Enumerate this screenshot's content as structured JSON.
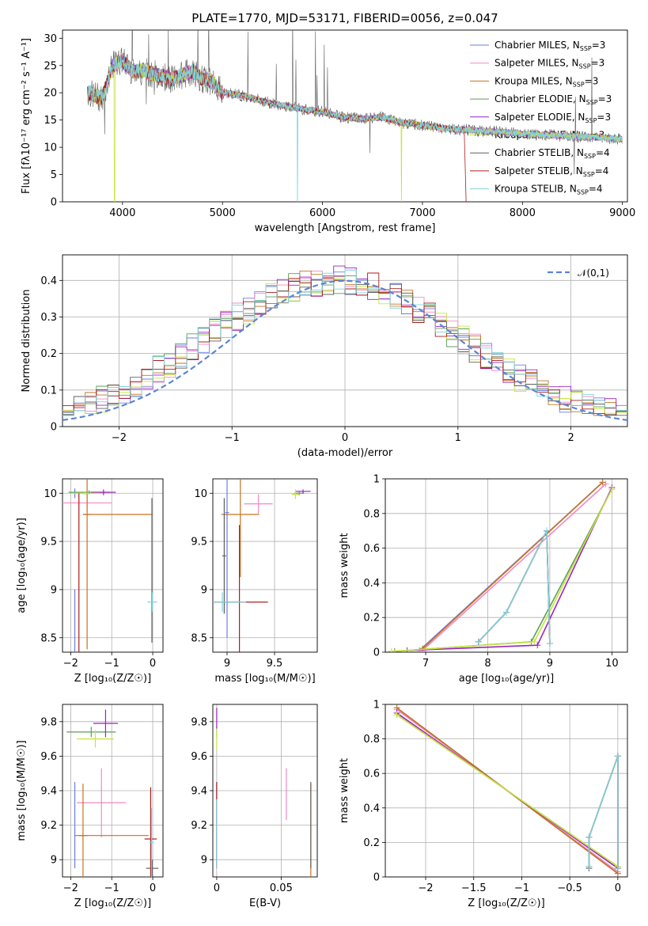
{
  "title": "PLATE=1770, MJD=53171, FIBERID=0056, z=0.047",
  "colors": [
    "#6a7fe0",
    "#f08ac4",
    "#c6731f",
    "#5e9e5a",
    "#9c23c4",
    "#c6e63a",
    "#606060",
    "#aa1e1e",
    "#7fd3dc"
  ],
  "models": [
    {
      "name": "Chabrier MILES",
      "nssp": "3"
    },
    {
      "name": "Salpeter MILES",
      "nssp": "3"
    },
    {
      "name": "Kroupa MILES",
      "nssp": "3"
    },
    {
      "name": "Chabrier ELODIE",
      "nssp": "3"
    },
    {
      "name": "Salpeter ELODIE",
      "nssp": "3"
    },
    {
      "name": "Kroupa ELODIE",
      "nssp": "3"
    },
    {
      "name": "Chabrier STELIB",
      "nssp": "4"
    },
    {
      "name": "Salpeter STELIB",
      "nssp": "4"
    },
    {
      "name": "Kroupa STELIB",
      "nssp": "4"
    }
  ],
  "chart_data": [
    {
      "id": "spectrum",
      "type": "line",
      "xlabel": "wavelength [Angstrom, rest frame]",
      "ylabel": "Flux [fλ10⁻¹⁷ erg cm⁻² s⁻¹ A⁻¹]",
      "xlim": [
        3400,
        9050
      ],
      "ylim": [
        0,
        31.5
      ],
      "xticks": [
        4000,
        5000,
        6000,
        7000,
        8000,
        9000
      ],
      "yticks": [
        0,
        5,
        10,
        15,
        20,
        25,
        30
      ],
      "continuum": [
        [
          3650,
          20
        ],
        [
          3800,
          19
        ],
        [
          3900,
          25
        ],
        [
          4000,
          26
        ],
        [
          4100,
          24
        ],
        [
          4200,
          24
        ],
        [
          4300,
          23.5
        ],
        [
          4500,
          22.5
        ],
        [
          4700,
          24
        ],
        [
          4800,
          22.5
        ],
        [
          4900,
          22
        ],
        [
          5000,
          20
        ],
        [
          5200,
          19.5
        ],
        [
          5500,
          18
        ],
        [
          5800,
          17
        ],
        [
          6000,
          16.5
        ],
        [
          6200,
          15.5
        ],
        [
          6400,
          15.2
        ],
        [
          6600,
          15.5
        ],
        [
          6800,
          14.5
        ],
        [
          7000,
          14
        ],
        [
          7200,
          13.5
        ],
        [
          7400,
          13.2
        ],
        [
          7600,
          13
        ],
        [
          7800,
          12.8
        ],
        [
          8000,
          12.5
        ],
        [
          8200,
          12.3
        ],
        [
          8500,
          12
        ],
        [
          8800,
          11.8
        ],
        [
          9000,
          11.5
        ]
      ],
      "grid": false
    },
    {
      "id": "residuals",
      "type": "line",
      "xlabel": "(data-model)/error",
      "ylabel": "Normed distribution",
      "xlim": [
        -2.5,
        2.5
      ],
      "ylim": [
        0,
        0.47
      ],
      "xticks": [
        -2,
        -1,
        0,
        1,
        2
      ],
      "yticks": [
        0.0,
        0.1,
        0.2,
        0.3,
        0.4
      ],
      "legend": "𝒩(0,1)",
      "legend_position": "top-right",
      "grid": true
    },
    {
      "id": "age-vs-Z",
      "type": "scatter",
      "xlabel": "Z [log₁₀(Z/Z☉)]",
      "ylabel": "age  [log₁₀(age/yr)]",
      "xlim": [
        -2.2,
        0.25
      ],
      "ylim": [
        8.35,
        10.15
      ],
      "xticks": [
        -2,
        -1,
        0
      ],
      "yticks": [
        8.5,
        9.0,
        9.5,
        10.0
      ],
      "grid": true,
      "crosses": [
        {
          "m": 0,
          "x": -1.9,
          "y": 10.0,
          "ex": 0,
          "ey": 0.05
        },
        {
          "m": 0,
          "x": -1.9,
          "y": 8.5,
          "ex": 0,
          "ey": 0.5
        },
        {
          "m": 1,
          "x": -1.6,
          "y": 9.9,
          "ex": 0.6,
          "ey": 0.1
        },
        {
          "m": 2,
          "x": -1.6,
          "y": 9.78,
          "ex": 0.1,
          "ey": 1.4
        },
        {
          "m": 2,
          "x": -0.85,
          "y": 9.78,
          "ex": 0.85,
          "ey": 0
        },
        {
          "m": 3,
          "x": -1.55,
          "y": 10.01,
          "ex": 0.5,
          "ey": 0.02
        },
        {
          "m": 4,
          "x": -1.2,
          "y": 10.01,
          "ex": 0.3,
          "ey": 0.03
        },
        {
          "m": 5,
          "x": -1.65,
          "y": 10.0,
          "ex": 0.35,
          "ey": 0.02
        },
        {
          "m": 6,
          "x": -0.02,
          "y": 9.2,
          "ex": 0,
          "ey": 0.75
        },
        {
          "m": 7,
          "x": -1.8,
          "y": 8.5,
          "ex": 0,
          "ey": 1.5
        },
        {
          "m": 8,
          "x": -0.01,
          "y": 8.87,
          "ex": 0.12,
          "ey": 0.1
        }
      ]
    },
    {
      "id": "age-vs-mass",
      "type": "scatter",
      "xlabel": "mass [log₁₀(M/M☉)]",
      "ylabel": "",
      "xlim": [
        8.85,
        9.95
      ],
      "ylim": [
        8.35,
        10.15
      ],
      "xticks": [
        9.0,
        9.5
      ],
      "yticks": [
        8.5,
        9.0,
        9.5,
        10.0
      ],
      "grid": true,
      "crosses": [
        {
          "m": 0,
          "x": 9.0,
          "y": 9.8,
          "ex": 0.02,
          "ey": 1.3
        },
        {
          "m": 1,
          "x": 9.33,
          "y": 9.89,
          "ex": 0.15,
          "ey": 0.1
        },
        {
          "m": 2,
          "x": 9.14,
          "y": 9.78,
          "ex": 0.2,
          "ey": 0.65
        },
        {
          "m": 3,
          "x": 9.76,
          "y": 10.0,
          "ex": 0.05,
          "ey": 0.02
        },
        {
          "m": 4,
          "x": 9.8,
          "y": 10.02,
          "ex": 0.08,
          "ey": 0.02
        },
        {
          "m": 5,
          "x": 9.72,
          "y": 9.99,
          "ex": 0.04,
          "ey": 0.05
        },
        {
          "m": 6,
          "x": 8.97,
          "y": 9.35,
          "ex": 0.02,
          "ey": 0.6
        },
        {
          "m": 7,
          "x": 9.13,
          "y": 8.87,
          "ex": 0.3,
          "ey": 0.8
        },
        {
          "m": 8,
          "x": 8.95,
          "y": 8.87,
          "ex": 0.25,
          "ey": 0.1
        }
      ]
    },
    {
      "id": "weight-vs-age",
      "type": "line",
      "xlabel": "age  [log₁₀(age/yr)]",
      "ylabel": "mass weight",
      "xlim": [
        6.35,
        10.25
      ],
      "ylim": [
        0,
        1
      ],
      "xticks": [
        7,
        8,
        9,
        10
      ],
      "yticks": [
        0.0,
        0.2,
        0.4,
        0.6,
        0.8,
        1.0
      ],
      "grid": true,
      "series": [
        {
          "m": 0,
          "x": [
            6.9,
            9.85
          ],
          "y": [
            0.01,
            0.98
          ]
        },
        {
          "m": 1,
          "x": [
            6.95,
            9.9
          ],
          "y": [
            0.01,
            0.97
          ]
        },
        {
          "m": 2,
          "x": [
            6.95,
            9.85
          ],
          "y": [
            0.02,
            0.98
          ]
        },
        {
          "m": 3,
          "x": [
            6.5,
            8.7,
            10.0
          ],
          "y": [
            0.005,
            0.06,
            0.94
          ]
        },
        {
          "m": 4,
          "x": [
            6.7,
            8.8,
            10.0
          ],
          "y": [
            0.01,
            0.04,
            0.95
          ]
        },
        {
          "m": 5,
          "x": [
            6.45,
            8.75,
            10.0
          ],
          "y": [
            0.005,
            0.06,
            0.94
          ]
        },
        {
          "m": 6,
          "x": [
            7.85,
            8.3,
            8.95,
            9.0
          ],
          "y": [
            0.06,
            0.23,
            0.7,
            0.05
          ]
        },
        {
          "m": 7,
          "x": [
            7.85,
            8.3,
            8.95,
            9.0
          ],
          "y": [
            0.06,
            0.23,
            0.7,
            0.05
          ]
        },
        {
          "m": 8,
          "x": [
            7.85,
            8.3,
            8.95,
            9.0
          ],
          "y": [
            0.06,
            0.23,
            0.7,
            0.05
          ]
        }
      ]
    },
    {
      "id": "mass-vs-Z",
      "type": "scatter",
      "xlabel": "Z [log₁₀(Z/Z☉)]",
      "ylabel": "mass [log₁₀(M/M☉)]",
      "xlim": [
        -2.2,
        0.25
      ],
      "ylim": [
        8.9,
        9.9
      ],
      "xticks": [
        -2,
        -1,
        0
      ],
      "yticks": [
        9.0,
        9.2,
        9.4,
        9.6,
        9.8
      ],
      "grid": true,
      "crosses": [
        {
          "m": 0,
          "x": -1.9,
          "y": 9.2,
          "ex": 0,
          "ey": 0.25
        },
        {
          "m": 1,
          "x": -1.25,
          "y": 9.33,
          "ex": 0.6,
          "ey": 0.2
        },
        {
          "m": 2,
          "x": -1.7,
          "y": 9.14,
          "ex": 0.1,
          "ey": 0.3
        },
        {
          "m": 2,
          "x": -1.0,
          "y": 9.14,
          "ex": 0.9,
          "ey": 0
        },
        {
          "m": 3,
          "x": -1.5,
          "y": 9.74,
          "ex": 0.6,
          "ey": 0.03
        },
        {
          "m": 4,
          "x": -1.15,
          "y": 9.79,
          "ex": 0.3,
          "ey": 0.08
        },
        {
          "m": 5,
          "x": -1.4,
          "y": 9.7,
          "ex": 0.45,
          "ey": 0.05
        },
        {
          "m": 6,
          "x": -0.01,
          "y": 8.95,
          "ex": 0.15,
          "ey": 0.05
        },
        {
          "m": 7,
          "x": -0.05,
          "y": 9.12,
          "ex": 0.15,
          "ey": 0.3
        },
        {
          "m": 8,
          "x": -0.03,
          "y": 9.1,
          "ex": 0.05,
          "ey": 0.2
        }
      ]
    },
    {
      "id": "mass-vs-ebv",
      "type": "scatter",
      "xlabel": "E(B-V)",
      "ylabel": "",
      "xlim": [
        -0.003,
        0.078
      ],
      "ylim": [
        8.9,
        9.9
      ],
      "xticks": [
        0.0,
        0.05
      ],
      "yticks": [
        9.0,
        9.2,
        9.4,
        9.6,
        9.8
      ],
      "grid": true,
      "crosses": [
        {
          "m": 0,
          "x": 0.0,
          "y": 9.2,
          "ex": 0,
          "ey": 0.25
        },
        {
          "m": 1,
          "x": 0.054,
          "y": 9.38,
          "ex": 0,
          "ey": 0.15
        },
        {
          "m": 2,
          "x": 0.073,
          "y": 9.14,
          "ex": 0,
          "ey": 0.3
        },
        {
          "m": 3,
          "x": 0.0,
          "y": 9.74,
          "ex": 0,
          "ey": 0.03
        },
        {
          "m": 4,
          "x": 0.0,
          "y": 9.82,
          "ex": 0,
          "ey": 0.06
        },
        {
          "m": 5,
          "x": 0.0,
          "y": 9.7,
          "ex": 0,
          "ey": 0.06
        },
        {
          "m": 6,
          "x": 0.073,
          "y": 9.2,
          "ex": 0,
          "ey": 0.25
        },
        {
          "m": 7,
          "x": 0.0,
          "y": 9.2,
          "ex": 0,
          "ey": 0.25
        },
        {
          "m": 8,
          "x": 0.0,
          "y": 9.15,
          "ex": 0,
          "ey": 0.2
        }
      ]
    },
    {
      "id": "weight-vs-Z",
      "type": "line",
      "xlabel": "Z [log₁₀(Z/Z☉)]",
      "ylabel": "mass weight",
      "xlim": [
        -2.42,
        0.1
      ],
      "ylim": [
        0,
        1
      ],
      "xticks": [
        -2.0,
        -1.5,
        -1.0,
        -0.5,
        0.0
      ],
      "yticks": [
        0.0,
        0.2,
        0.4,
        0.6,
        0.8,
        1.0
      ],
      "grid": true,
      "series": [
        {
          "m": 0,
          "x": [
            -2.3,
            0.0
          ],
          "y": [
            0.98,
            0.02
          ]
        },
        {
          "m": 1,
          "x": [
            -2.3,
            0.0
          ],
          "y": [
            0.97,
            0.03
          ]
        },
        {
          "m": 2,
          "x": [
            -2.3,
            0.0
          ],
          "y": [
            0.98,
            0.02
          ]
        },
        {
          "m": 3,
          "x": [
            -2.3,
            0.0
          ],
          "y": [
            0.94,
            0.06
          ]
        },
        {
          "m": 4,
          "x": [
            -2.3,
            0.0
          ],
          "y": [
            0.95,
            0.05
          ]
        },
        {
          "m": 5,
          "x": [
            -2.3,
            0.0
          ],
          "y": [
            0.94,
            0.06
          ]
        },
        {
          "m": 6,
          "x": [
            -0.3,
            -0.3,
            0.0,
            0.0
          ],
          "y": [
            0.05,
            0.23,
            0.7,
            0.05
          ]
        },
        {
          "m": 7,
          "x": [
            -0.3,
            -0.3,
            0.0,
            0.0
          ],
          "y": [
            0.06,
            0.23,
            0.7,
            0.05
          ]
        },
        {
          "m": 8,
          "x": [
            -0.3,
            -0.3,
            0.0,
            0.0
          ],
          "y": [
            0.06,
            0.23,
            0.7,
            0.05
          ]
        }
      ]
    }
  ]
}
